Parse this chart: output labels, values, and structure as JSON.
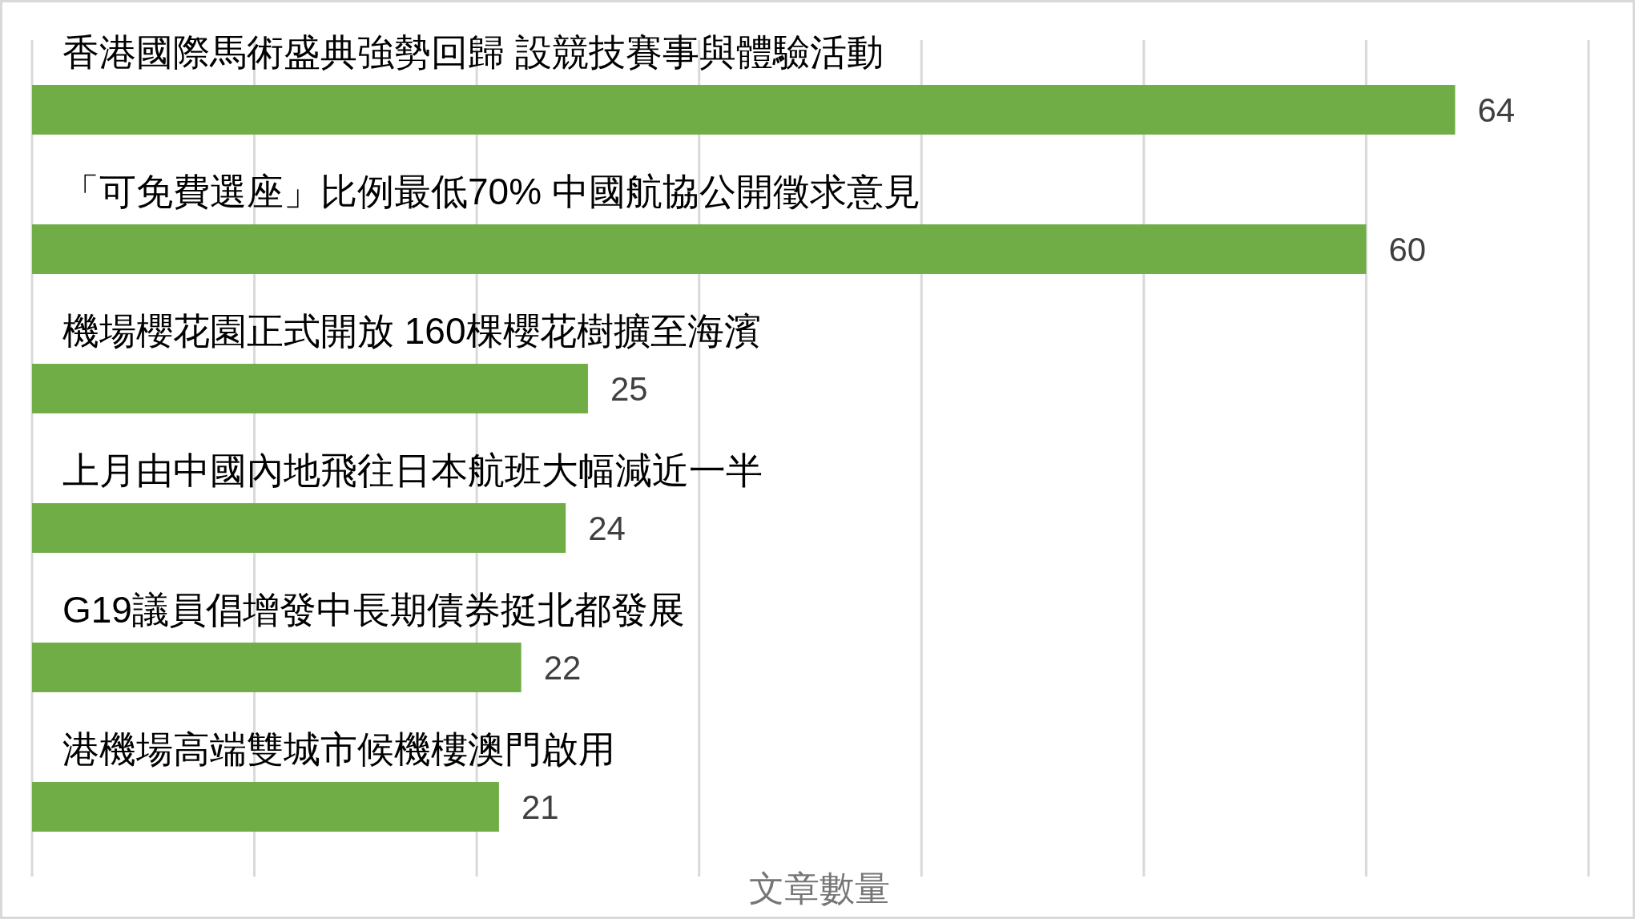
{
  "chart_data": {
    "type": "bar",
    "orientation": "horizontal",
    "categories": [
      "香港國際馬術盛典強勢回歸 設競技賽事與體驗活動",
      "「可免費選座」比例最低70% 中國航協公開徵求意見",
      "機場櫻花園正式開放 160棵櫻花樹擴至海濱",
      "上月由中國內地飛往日本航班大幅減近一半",
      "G19議員倡增發中長期債券挺北都發展",
      "港機場高端雙城市候機樓澳門啟用"
    ],
    "values": [
      64,
      60,
      25,
      24,
      22,
      21
    ],
    "color": "#70ad47",
    "data_labels": true,
    "xlabel": "文章數量",
    "xlim": [
      0,
      70
    ],
    "xticks": [
      {
        "value": 0,
        "label": null
      },
      {
        "value": 10,
        "label": null
      },
      {
        "value": 20,
        "label": null
      },
      {
        "value": 30,
        "label": null
      },
      {
        "value": 40,
        "label": null
      },
      {
        "value": 50,
        "label": null
      },
      {
        "value": 60,
        "label": null
      },
      {
        "value": 70,
        "label": null
      }
    ],
    "grid": "x",
    "tick_labels": "y"
  }
}
